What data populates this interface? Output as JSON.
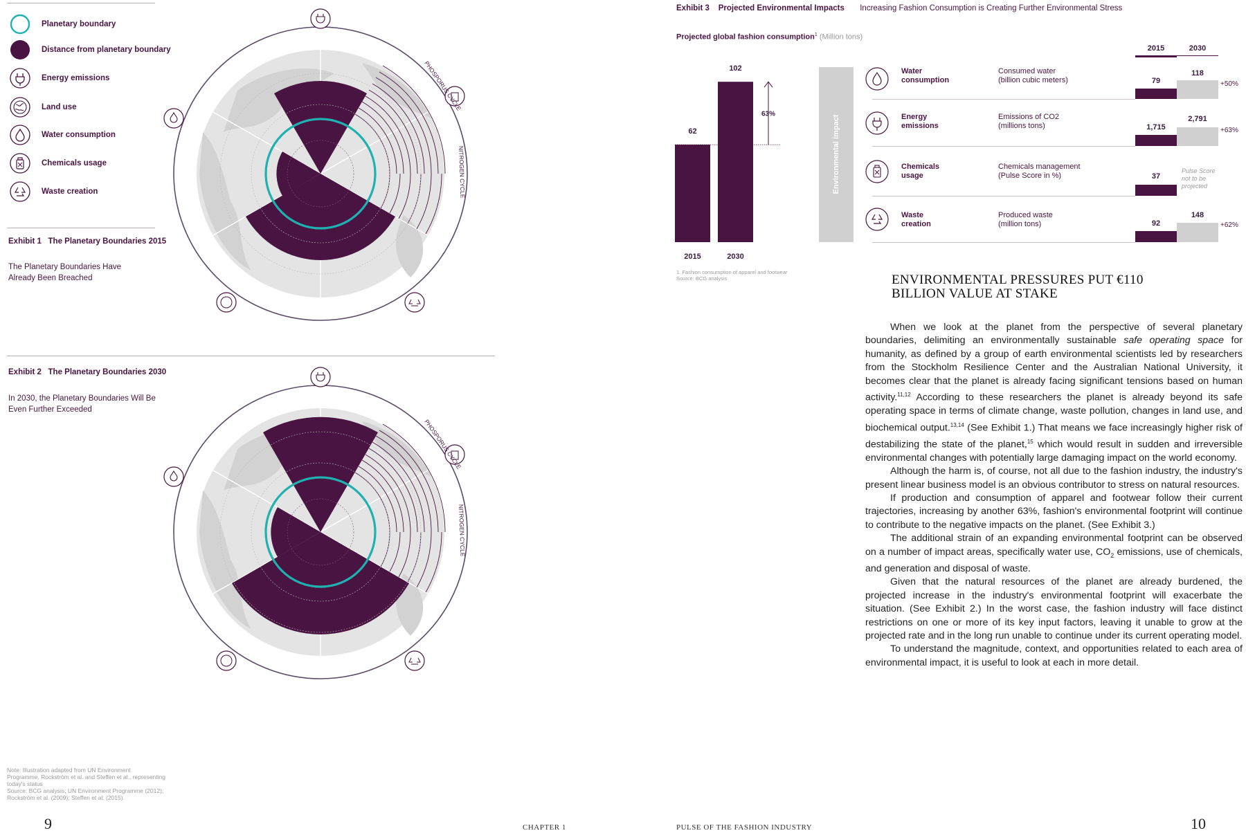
{
  "legend": {
    "items": [
      {
        "label": "Planetary boundary",
        "icon": "planetary-boundary-ring-icon"
      },
      {
        "label": "Distance from planetary boundary",
        "icon": "distance-disc-icon"
      },
      {
        "label": "Energy emissions",
        "icon": "plug-icon"
      },
      {
        "label": "Land use",
        "icon": "globe-icon"
      },
      {
        "label": "Water consumption",
        "icon": "water-drop-icon"
      },
      {
        "label": "Chemicals usage",
        "icon": "chemical-bottle-icon"
      },
      {
        "label": "Waste creation",
        "icon": "recycle-icon"
      }
    ]
  },
  "exhibit1": {
    "number": "Exhibit 1",
    "title": "The Planetary Boundaries 2015",
    "subtitle_line1": "The Planetary Boundaries Have",
    "subtitle_line2": "Already Been Breached",
    "label_phosphorus": "PHOSPORUS CYCLE",
    "label_nitrogen": "NITROGEN CYCLE"
  },
  "exhibit2": {
    "number": "Exhibit 2",
    "title": "The Planetary Boundaries 2030",
    "subtitle_line1": "In 2030, the Planetary Boundaries Will Be",
    "subtitle_line2": "Even Further Exceeded",
    "label_phosphorus": "PHOSPORUS CYCLE",
    "label_nitrogen": "NITROGEN CYCLE"
  },
  "left_note": {
    "line1": "Note: Illustration adapted from UN Environment",
    "line2": "Programme, Rockström et al. and Steffen et al., representing",
    "line3": "today's status",
    "line4": "Source: BCG analysis; UN Environment Programme (2012);",
    "line5": "Rockström et al. (2009); Steffen et al. (2015)."
  },
  "exhibit3": {
    "number": "Exhibit 3",
    "title": "Projected Environmental Impacts",
    "subtitle": "Increasing Fashion Consumption is Creating Further Environmental Stress",
    "chart_title": "Projected global fashion consumption",
    "chart_title_sup": "1",
    "chart_unit": "(Million tons)",
    "growth_label": "63%",
    "side_label": "Environmental impact",
    "footnote1": "1. Fashion consumption of apparel and footwear",
    "footnote2": "Source: BCG analysis",
    "year_2015": "2015",
    "year_2030": "2030",
    "rows": [
      {
        "label1": "Water",
        "label2": "consumption",
        "desc1": "Consumed water",
        "desc2": "(billion cubic meters)",
        "v2015": "79",
        "v2030": "118",
        "change": "+50%",
        "icon": "water-drop-icon"
      },
      {
        "label1": "Energy",
        "label2": "emissions",
        "desc1": "Emissions of CO2",
        "desc2": "(millions tons)",
        "v2015": "1,715",
        "v2030": "2,791",
        "change": "+63%",
        "icon": "plug-icon"
      },
      {
        "label1": "Chemicals",
        "label2": "usage",
        "desc1": "Chemicals management",
        "desc2": "(Pulse Score in %)",
        "v2015": "37",
        "v2030": "",
        "note1": "Pulse Score",
        "note2": "not to be",
        "note3": "projected",
        "change": "",
        "icon": "chemical-bottle-icon"
      },
      {
        "label1": "Waste",
        "label2": "creation",
        "desc1": "Produced waste",
        "desc2": "(million tons)",
        "v2015": "92",
        "v2030": "148",
        "change": "+62%",
        "icon": "recycle-icon"
      }
    ]
  },
  "chart_data": {
    "type": "bar",
    "title": "Projected global fashion consumption (Million tons)",
    "categories": [
      "2015",
      "2030"
    ],
    "values": [
      62,
      102
    ],
    "annotation": "63%",
    "xlabel": "",
    "ylabel": "Million tons",
    "ylim": [
      0,
      110
    ]
  },
  "article": {
    "heading_line1": "ENVIRONMENTAL PRESSURES PUT €110",
    "heading_line2": "BILLION VALUE AT STAKE",
    "p1_a": "When we look at the planet from the perspective of several planetary boundaries, delimiting an environmentally sustainable ",
    "p1_italic": "safe operating space",
    "p1_b": " for humanity, as defined by a group of earth environmental scientists led by researchers from the Stockholm Resilience Center and the Australian National University, it becomes clear that the planet is already facing significant tensions based on human activity.",
    "p1_sup1": "11,12",
    "p1_c": " According to these researchers the planet is already beyond its safe operating space in terms of climate change, waste pollution, changes in land use, and biochemical output.",
    "p1_sup2": "13,14",
    "p1_d": " (See Exhibit 1.) That means we face increasingly higher risk of destabilizing the state of the planet,",
    "p1_sup3": "15",
    "p1_e": " which would result in sudden and irreversible environmental changes with potentially large damaging impact on the world economy.",
    "p2": "Although the harm is, of course, not all due to the fashion industry, the industry's present linear business model is an obvious contributor to stress on natural resources.",
    "p3": "If production and consumption of apparel and footwear follow their current trajectories, increasing by another 63%, fashion's environmental footprint will continue to contribute to the negative impacts on the planet. (See Exhibit 3.)",
    "p4_a": "The additional strain of an expanding environmental footprint can be observed on a number of impact areas, specifically water use, CO",
    "p4_sub": "2",
    "p4_b": " emissions, use of chemicals, and generation and disposal of waste.",
    "p5": "Given that the natural resources of the planet are already burdened, the projected increase in the industry's environmental footprint will exacerbate the situation. (See Exhibit 2.) In the worst case, the fashion industry will face distinct restrictions on one or more of its key input factors, leaving it unable to grow at the projected rate and in the long run unable to continue under its current operating model.",
    "p6": "To understand the magnitude, context, and opportunities related to each area of environmental impact, it is useful to look at each in more detail."
  },
  "footer": {
    "page_left": "9",
    "running_left": "CHAPTER 1",
    "running_right": "PULSE OF THE FASHION INDUSTRY",
    "page_right": "10"
  },
  "colors": {
    "plum": "#4a1442",
    "teal": "#1fb0b0",
    "gray": "#d0d0d0",
    "land": "#e4e4e4"
  }
}
